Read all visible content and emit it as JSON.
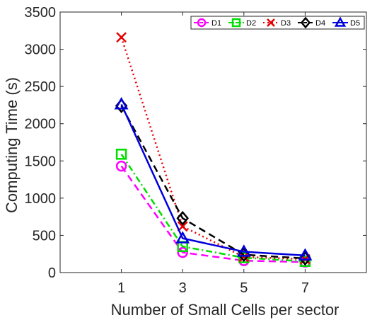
{
  "chart_data": {
    "type": "line",
    "title": "",
    "xlabel": "Number of Small Cells per sector",
    "ylabel": "Computing Time (s)",
    "x": [
      1,
      3,
      5,
      7
    ],
    "xlim": [
      -1,
      9
    ],
    "ylim": [
      0,
      3500
    ],
    "xticks": [
      1,
      3,
      5,
      7
    ],
    "yticks": [
      0,
      500,
      1000,
      1500,
      2000,
      2500,
      3000,
      3500
    ],
    "x_tick_labels": [
      "1",
      "3",
      "5",
      "7"
    ],
    "y_tick_labels": [
      "0",
      "500",
      "1000",
      "1500",
      "2000",
      "2500",
      "3000",
      "3500"
    ],
    "grid": false,
    "legend": {
      "placement": "top-right",
      "orientation": "horizontal"
    },
    "series": [
      {
        "name": "D1",
        "values": [
          1430,
          270,
          160,
          140
        ],
        "color": "#ff00ff",
        "line_style": "dashed",
        "marker": "circle"
      },
      {
        "name": "D2",
        "values": [
          1590,
          350,
          200,
          150
        ],
        "color": "#00dd00",
        "line_style": "dash-dot",
        "marker": "square"
      },
      {
        "name": "D3",
        "values": [
          3160,
          620,
          210,
          180
        ],
        "color": "#e60000",
        "line_style": "dotted",
        "marker": "x"
      },
      {
        "name": "D4",
        "values": [
          2240,
          730,
          240,
          190
        ],
        "color": "#000000",
        "line_style": "dashed",
        "marker": "diamond"
      },
      {
        "name": "D5",
        "values": [
          2260,
          460,
          280,
          230
        ],
        "color": "#0000dd",
        "line_style": "solid",
        "marker": "triangle"
      }
    ]
  }
}
